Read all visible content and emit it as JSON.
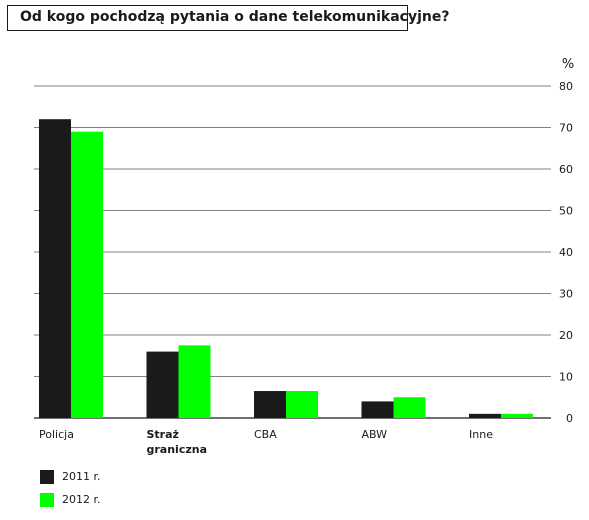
{
  "chart_data": {
    "type": "bar",
    "title": "Od kogo pochodzą pytania o dane telekomunikacyjne?",
    "ylabel": "%",
    "ylim": [
      0,
      80
    ],
    "yticks": [
      0,
      10,
      20,
      30,
      40,
      50,
      60,
      70,
      80
    ],
    "grid": true,
    "categories": [
      "Policja",
      "Straż graniczna",
      "CBA",
      "ABW",
      "Inne"
    ],
    "series": [
      {
        "name": "2011 r.",
        "color": "#1a1a1a",
        "values": [
          72,
          16,
          6.5,
          4,
          1
        ]
      },
      {
        "name": "2012 r.",
        "color": "#00ff00",
        "values": [
          69,
          17.5,
          6.5,
          5,
          1
        ]
      }
    ],
    "legend_position": "bottom-left"
  }
}
